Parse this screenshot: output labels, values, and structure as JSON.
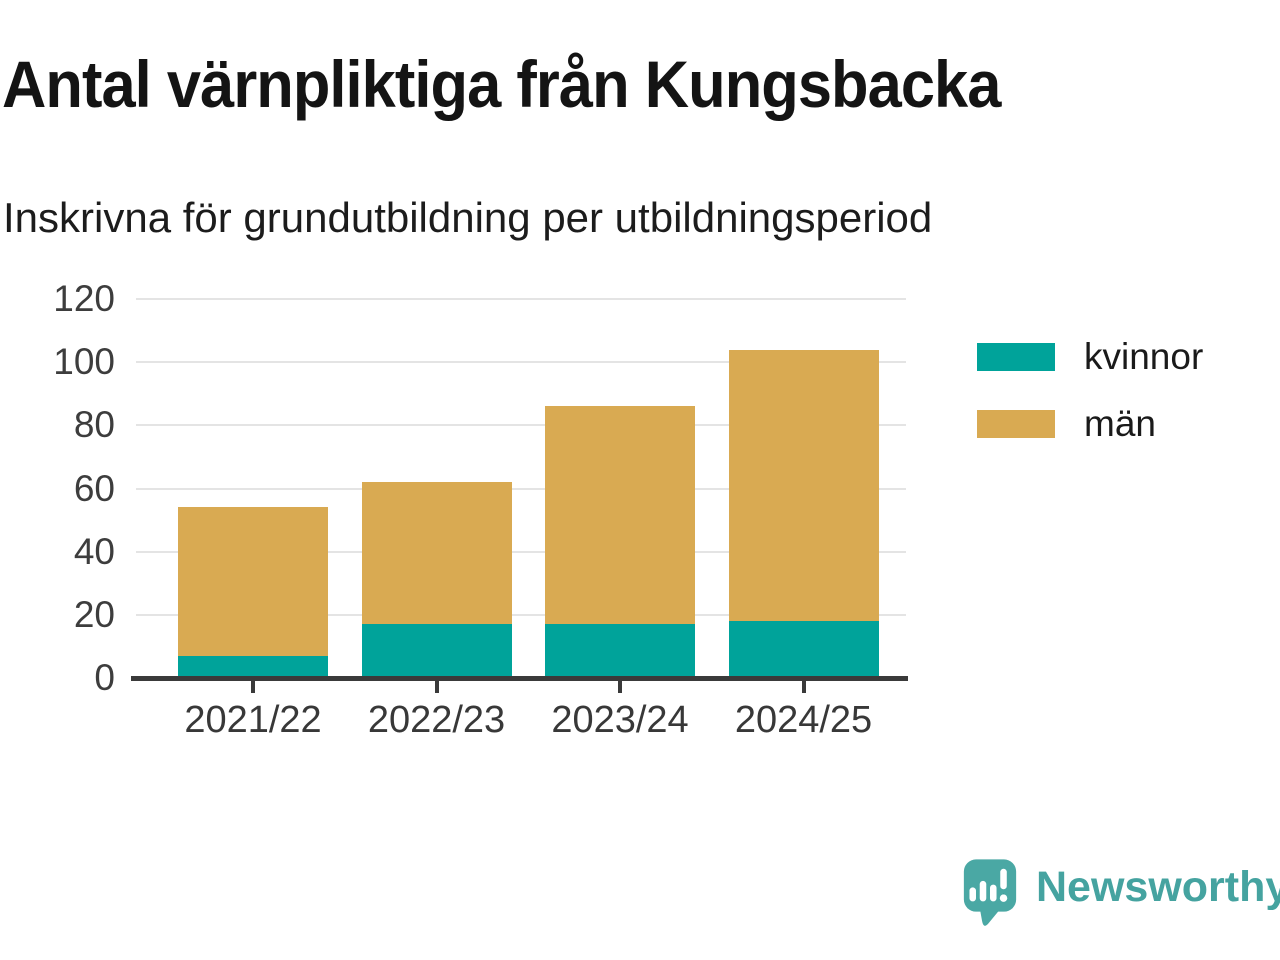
{
  "header": {
    "title": "Antal värnpliktiga från Kungsbacka",
    "subtitle": "Inskrivna för grundutbildning per utbildningsperiod"
  },
  "chart_data": {
    "type": "bar",
    "stacked": true,
    "title": "Antal värnpliktiga från Kungsbacka",
    "subtitle": "Inskrivna för grundutbildning per utbildningsperiod",
    "categories": [
      "2021/22",
      "2022/23",
      "2023/24",
      "2024/25"
    ],
    "series": [
      {
        "name": "kvinnor",
        "color": "#00a39a",
        "values": [
          7,
          17,
          17,
          18
        ]
      },
      {
        "name": "män",
        "color": "#d9aa52",
        "values": [
          47,
          45,
          69,
          86
        ]
      }
    ],
    "stacked_totals": [
      54,
      62,
      86,
      104
    ],
    "xlabel": "",
    "ylabel": "",
    "ylim": [
      0,
      120
    ],
    "yticks": [
      0,
      20,
      40,
      60,
      80,
      100,
      120
    ],
    "grid": "horizontal-only",
    "legend_position": "right"
  },
  "footer": {
    "brand": "Newsworthy",
    "brand_color": "#45a3a0",
    "logo_icon": "bar-chart-speech-bubble-icon"
  }
}
